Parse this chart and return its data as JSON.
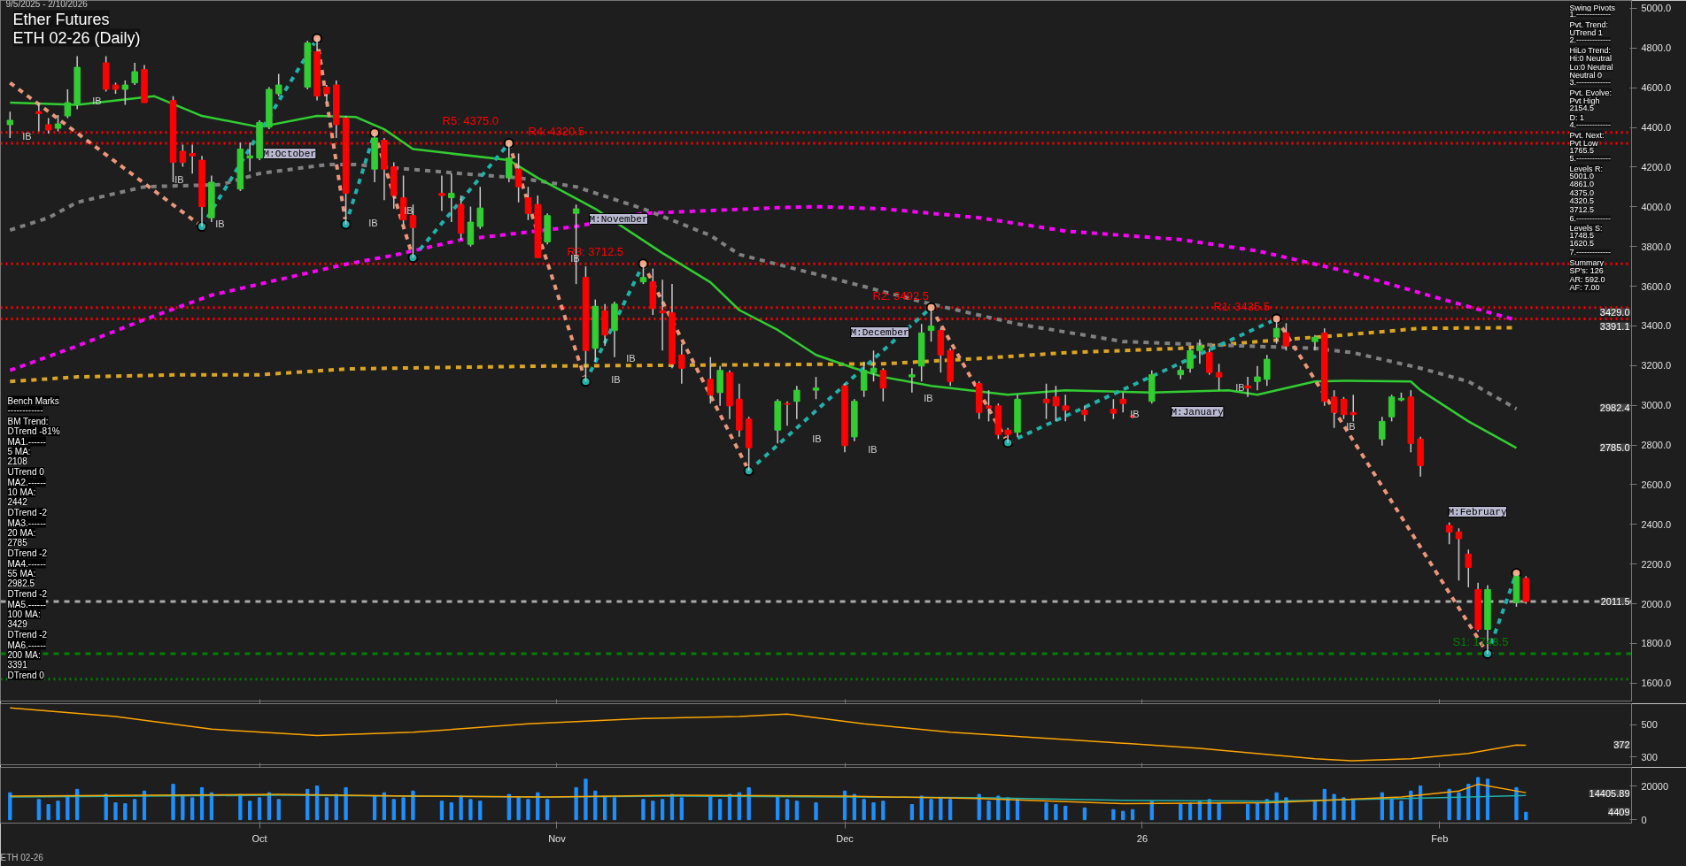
{
  "chart_data": [
    {
      "type": "candlestick",
      "title": "Ether Futures",
      "subtitle": "ETH 02-26 (Daily)",
      "x": [
        "2025-09-05",
        "2025-09-08",
        "2025-09-09",
        "2025-09-10",
        "2025-09-11",
        "2025-09-12",
        "2025-09-15",
        "2025-09-16",
        "2025-09-17",
        "2025-09-18",
        "2025-09-19",
        "2025-09-22",
        "2025-09-23",
        "2025-09-24",
        "2025-09-25",
        "2025-09-26",
        "2025-09-29",
        "2025-09-30",
        "2025-10-01",
        "2025-10-02",
        "2025-10-03",
        "2025-10-06",
        "2025-10-07",
        "2025-10-08",
        "2025-10-09",
        "2025-10-10",
        "2025-10-13",
        "2025-10-14",
        "2025-10-15",
        "2025-10-16",
        "2025-10-17",
        "2025-10-20",
        "2025-10-21",
        "2025-10-22",
        "2025-10-23",
        "2025-10-24",
        "2025-10-27",
        "2025-10-28",
        "2025-10-29",
        "2025-10-30",
        "2025-10-31",
        "2025-11-03",
        "2025-11-04",
        "2025-11-05",
        "2025-11-06",
        "2025-11-07",
        "2025-11-10",
        "2025-11-11",
        "2025-11-12",
        "2025-11-13",
        "2025-11-14",
        "2025-11-17",
        "2025-11-18",
        "2025-11-19",
        "2025-11-20",
        "2025-11-21",
        "2025-11-24",
        "2025-11-25",
        "2025-11-26",
        "2025-11-28",
        "2025-12-01",
        "2025-12-02",
        "2025-12-03",
        "2025-12-04",
        "2025-12-05",
        "2025-12-08",
        "2025-12-09",
        "2025-12-10",
        "2025-12-11",
        "2025-12-12",
        "2025-12-15",
        "2025-12-16",
        "2025-12-17",
        "2025-12-18",
        "2025-12-19",
        "2025-12-22",
        "2025-12-23",
        "2025-12-24",
        "2025-12-26",
        "2025-12-29",
        "2025-12-30",
        "2025-12-31",
        "2026-01-02",
        "2026-01-05",
        "2026-01-06",
        "2026-01-07",
        "2026-01-08",
        "2026-01-09",
        "2026-01-12",
        "2026-01-13",
        "2026-01-14",
        "2026-01-15",
        "2026-01-16",
        "2026-01-19",
        "2026-01-20",
        "2026-01-21",
        "2026-01-22",
        "2026-01-23",
        "2026-01-26",
        "2026-01-27",
        "2026-01-28",
        "2026-01-29",
        "2026-01-30",
        "2026-02-02",
        "2026-02-03",
        "2026-02-04",
        "2026-02-05",
        "2026-02-06",
        "2026-02-09",
        "2026-02-10"
      ],
      "ohlc": [
        [
          4414,
          4480,
          4347,
          4436
        ],
        [
          4480,
          4525,
          4380,
          4470
        ],
        [
          4414,
          4447,
          4369,
          4387
        ],
        [
          4396,
          4463,
          4380,
          4418
        ],
        [
          4458,
          4592,
          4447,
          4525
        ],
        [
          4514,
          4759,
          4492,
          4703
        ],
        [
          4726,
          4759,
          4581,
          4592
        ],
        [
          4614,
          4625,
          4570,
          4592
        ],
        [
          4592,
          4637,
          4514,
          4614
        ],
        [
          4625,
          4726,
          4614,
          4681
        ],
        [
          4692,
          4715,
          4525,
          4525
        ],
        [
          4536,
          4558,
          4124,
          4224
        ],
        [
          4280,
          4313,
          4202,
          4224
        ],
        [
          4269,
          4313,
          4168,
          4257
        ],
        [
          4235,
          4257,
          3901,
          4001
        ],
        [
          3945,
          4157,
          3923,
          4124
        ],
        [
          4090,
          4324,
          4079,
          4291
        ],
        [
          4246,
          4324,
          4179,
          4257
        ],
        [
          4246,
          4436,
          4235,
          4425
        ],
        [
          4402,
          4603,
          4391,
          4592
        ],
        [
          4570,
          4670,
          4558,
          4614
        ],
        [
          4603,
          4837,
          4592,
          4826
        ],
        [
          4781,
          4848,
          4536,
          4558
        ],
        [
          4603,
          4614,
          4525,
          4570
        ],
        [
          4614,
          4637,
          4347,
          4414
        ],
        [
          4447,
          4458,
          3912,
          4068
        ],
        [
          4190,
          4373,
          4124,
          4347
        ],
        [
          4335,
          4347,
          4034,
          4190
        ],
        [
          4202,
          4224,
          3990,
          4057
        ],
        [
          4046,
          4157,
          3912,
          3934
        ],
        [
          3956,
          4012,
          3744,
          3896
        ],
        [
          4068,
          4157,
          3979,
          4057
        ],
        [
          4046,
          4168,
          3923,
          4068
        ],
        [
          4012,
          4057,
          3834,
          3867
        ],
        [
          3811,
          4001,
          3800,
          3923
        ],
        [
          3901,
          4101,
          3889,
          3994
        ],
        [
          4146,
          4320.5,
          4124,
          4246
        ],
        [
          4190,
          4269,
          4023,
          4101
        ],
        [
          4046,
          4101,
          3934,
          3967
        ],
        [
          4012,
          4057,
          3744,
          3744
        ],
        [
          3823,
          3967,
          3811,
          3956
        ],
        [
          3967,
          4012,
          3611,
          3990
        ],
        [
          3644,
          3700,
          3120,
          3276
        ],
        [
          3287,
          3533,
          3220,
          3499
        ],
        [
          3477,
          3510,
          3299,
          3354
        ],
        [
          3377,
          3522,
          3243,
          3510
        ],
        [
          3622,
          3712.5,
          3611,
          3644
        ],
        [
          3622,
          3689,
          3455,
          3488
        ],
        [
          3477,
          3633,
          3276,
          3466
        ],
        [
          3466,
          3611,
          3187,
          3209
        ],
        [
          3254,
          3310,
          3109,
          3187
        ],
        [
          3131,
          3243,
          3009,
          3053
        ],
        [
          3064,
          3198,
          2997,
          3176
        ],
        [
          3165,
          3176,
          2931,
          2997
        ],
        [
          3031,
          3109,
          2841,
          2875
        ],
        [
          2931,
          2942,
          2670,
          2786
        ],
        [
          2875,
          3031,
          2808,
          3020
        ],
        [
          3009,
          3020,
          2897,
          3005
        ],
        [
          3020,
          3098,
          2931,
          3076
        ],
        [
          3076,
          3143,
          3031,
          3087
        ],
        [
          3098,
          3109,
          2763,
          2797
        ],
        [
          2841,
          3031,
          2819,
          3020
        ],
        [
          3076,
          3220,
          3042,
          3176
        ],
        [
          3165,
          3276,
          3120,
          3187
        ],
        [
          3176,
          3187,
          3020,
          3087
        ],
        [
          3143,
          3187,
          3064,
          3154
        ],
        [
          3198,
          3410,
          3120,
          3365
        ],
        [
          3377,
          3492.5,
          3321,
          3399
        ],
        [
          3377,
          3388,
          3165,
          3254
        ],
        [
          3276,
          3287,
          3098,
          3120
        ],
        [
          3109,
          3120,
          2931,
          2964
        ],
        [
          2997,
          3076,
          2919,
          2986
        ],
        [
          2997,
          3009,
          2830,
          2853
        ],
        [
          2875,
          2886,
          2812,
          2853
        ],
        [
          2864,
          3053,
          2841,
          3031
        ],
        [
          3031,
          3109,
          2931,
          3013
        ],
        [
          3042,
          3098,
          2919,
          2997
        ],
        [
          2997,
          3053,
          2919,
          2975
        ],
        [
          2975,
          2997,
          2919,
          2953
        ],
        [
          2980,
          3031,
          2931,
          2960
        ],
        [
          3031,
          3064,
          2964,
          3009
        ],
        [
          2946,
          2953,
          2935,
          2942
        ],
        [
          3020,
          3176,
          3009,
          3154
        ],
        [
          3154,
          3198,
          3131,
          3176
        ],
        [
          3187,
          3287,
          3165,
          3276
        ],
        [
          3276,
          3332,
          3209,
          3299
        ],
        [
          3265,
          3287,
          3154,
          3165
        ],
        [
          3165,
          3209,
          3076,
          3143
        ],
        [
          3098,
          3143,
          3042,
          3087
        ],
        [
          3120,
          3198,
          3076,
          3143
        ],
        [
          3131,
          3254,
          3098,
          3232
        ],
        [
          3343,
          3435.5,
          3310,
          3388
        ],
        [
          3365,
          3414,
          3276,
          3299
        ],
        [
          3321,
          3354,
          3276,
          3343
        ],
        [
          3365,
          3388,
          2997,
          3020
        ],
        [
          3042,
          3076,
          2886,
          2964
        ],
        [
          3031,
          3042,
          2931,
          2953
        ],
        [
          2964,
          3053,
          2919,
          2953
        ],
        [
          2830,
          2942,
          2797,
          2919
        ],
        [
          2942,
          3053,
          2919,
          3042
        ],
        [
          3027,
          3064,
          3020,
          3035
        ],
        [
          3042,
          3076,
          2763,
          2808
        ],
        [
          2830,
          2841,
          2641,
          2696
        ],
        [
          2395,
          2410,
          2300,
          2362
        ],
        [
          2362,
          2380,
          2117,
          2328
        ],
        [
          2250,
          2273,
          2083,
          2183
        ],
        [
          2072,
          2106,
          1860,
          1871
        ],
        [
          1871,
          2094,
          1748.5,
          2072
        ],
        [
          2005,
          2154.5,
          1985,
          2139
        ],
        [
          2128,
          2139,
          2000,
          2011.5
        ]
      ],
      "series": [
        {
          "type": "line",
          "color": "#ff00ff",
          "line_style": "dashed",
          "x": [
            "2025-09-05",
            "2025-09-12",
            "2025-09-19",
            "2025-09-26",
            "2025-10-03",
            "2025-10-10",
            "2025-10-15",
            "2025-10-22",
            "2025-11-03",
            "2025-11-10",
            "2025-11-24",
            "2025-11-28",
            "2025-12-05",
            "2025-12-15",
            "2025-12-24",
            "2026-01-05",
            "2026-01-13",
            "2026-01-22",
            "2026-01-30",
            "2026-02-09"
          ],
          "values": [
            3176,
            3299,
            3432,
            3555,
            3633,
            3711,
            3756,
            3834,
            3901,
            3967,
            3996,
            4001,
            3990,
            3945,
            3878,
            3835,
            3778,
            3678,
            3566,
            3429
          ]
        },
        {
          "type": "line",
          "color": "#daa520",
          "line_style": "dashed",
          "x": [
            "2025-09-05",
            "2025-09-12",
            "2025-09-23",
            "2025-10-01",
            "2025-10-10",
            "2025-10-15",
            "2025-10-31",
            "2025-11-24",
            "2025-12-05",
            "2025-12-15",
            "2025-12-24",
            "2026-01-05",
            "2026-01-13",
            "2026-01-22",
            "2026-01-30",
            "2026-02-09"
          ],
          "values": [
            3120,
            3143,
            3154,
            3154,
            3183,
            3187,
            3198,
            3205,
            3209,
            3236,
            3265,
            3287,
            3321,
            3354,
            3388,
            3391.1
          ]
        },
        {
          "type": "line",
          "color": "#808080",
          "line_style": "dashed",
          "x": [
            "2025-09-05",
            "2025-09-09",
            "2025-09-12",
            "2025-09-19",
            "2025-09-27",
            "2025-10-01",
            "2025-10-08",
            "2025-10-11",
            "2025-10-22",
            "2025-10-28",
            "2025-11-03",
            "2025-11-10",
            "2025-11-17",
            "2025-11-20",
            "2025-12-02",
            "2025-12-10",
            "2025-12-19",
            "2025-12-30",
            "2026-01-05",
            "2026-01-19",
            "2026-01-23",
            "2026-01-30",
            "2026-02-04",
            "2026-02-09"
          ],
          "values": [
            3883,
            3945,
            4023,
            4101,
            4112,
            4168,
            4213,
            4213,
            4168,
            4146,
            4101,
            3990,
            3856,
            3760,
            3611,
            3510,
            3410,
            3321,
            3310,
            3287,
            3265,
            3187,
            3120,
            2982.4
          ]
        },
        {
          "type": "line",
          "color": "#32cd32",
          "line_style": "solid",
          "x": [
            "2025-09-05",
            "2025-09-12",
            "2025-09-20",
            "2025-09-25",
            "2025-10-01",
            "2025-10-07",
            "2025-10-11",
            "2025-10-14",
            "2025-10-17",
            "2025-10-27",
            "2025-10-30",
            "2025-11-05",
            "2025-11-12",
            "2025-11-17",
            "2025-11-20",
            "2025-11-24",
            "2025-11-28",
            "2025-12-02",
            "2025-12-05",
            "2025-12-10",
            "2025-12-18",
            "2025-12-24",
            "2026-01-02",
            "2026-01-10",
            "2026-01-13",
            "2026-01-19",
            "2026-01-22",
            "2026-01-29",
            "2026-01-30",
            "2026-02-04",
            "2026-02-09"
          ],
          "values": [
            4525,
            4514,
            4558,
            4458,
            4402,
            4458,
            4453,
            4391,
            4291,
            4235,
            4146,
            3990,
            3767,
            3620,
            3480,
            3380,
            3254,
            3187,
            3143,
            3098,
            3053,
            3076,
            3064,
            3076,
            3053,
            3120,
            3124,
            3120,
            3076,
            2919,
            2785
          ]
        },
        {
          "type": "line",
          "color": "#e9967a",
          "line_style": "dashed",
          "x": [
            "2025-09-05",
            "2025-09-25"
          ],
          "values": [
            4625,
            3901
          ]
        },
        {
          "type": "line",
          "color": "#20b2aa",
          "line_style": "dashed",
          "x": [
            "2025-09-25",
            "2025-10-07"
          ],
          "values": [
            3901,
            4848
          ]
        },
        {
          "type": "line",
          "color": "#e9967a",
          "line_style": "dashed",
          "x": [
            "2025-10-07",
            "2025-10-10"
          ],
          "values": [
            4848,
            3912
          ]
        },
        {
          "type": "line",
          "color": "#20b2aa",
          "line_style": "dashed",
          "x": [
            "2025-10-10",
            "2025-10-13"
          ],
          "values": [
            3912,
            4373
          ]
        },
        {
          "type": "line",
          "color": "#e9967a",
          "line_style": "dashed",
          "x": [
            "2025-10-13",
            "2025-10-17"
          ],
          "values": [
            4373,
            3744
          ]
        },
        {
          "type": "line",
          "color": "#20b2aa",
          "line_style": "dashed",
          "x": [
            "2025-10-17",
            "2025-10-27"
          ],
          "values": [
            3744,
            4320.5
          ]
        },
        {
          "type": "line",
          "color": "#e9967a",
          "line_style": "dashed",
          "x": [
            "2025-10-27",
            "2025-11-04"
          ],
          "values": [
            4320.5,
            3120
          ]
        },
        {
          "type": "line",
          "color": "#20b2aa",
          "line_style": "dashed",
          "x": [
            "2025-11-04",
            "2025-11-10"
          ],
          "values": [
            3120,
            3712.5
          ]
        },
        {
          "type": "line",
          "color": "#e9967a",
          "line_style": "dashed",
          "x": [
            "2025-11-10",
            "2025-11-21"
          ],
          "values": [
            3712.5,
            2670
          ]
        },
        {
          "type": "line",
          "color": "#20b2aa",
          "line_style": "dashed",
          "x": [
            "2025-11-21",
            "2025-12-10"
          ],
          "values": [
            2670,
            3492.5
          ]
        },
        {
          "type": "line",
          "color": "#e9967a",
          "line_style": "dashed",
          "x": [
            "2025-12-10",
            "2025-12-18"
          ],
          "values": [
            3492.5,
            2812
          ]
        },
        {
          "type": "line",
          "color": "#20b2aa",
          "line_style": "dashed",
          "x": [
            "2025-12-18",
            "2026-01-15"
          ],
          "values": [
            2812,
            3435.5
          ]
        },
        {
          "type": "line",
          "color": "#e9967a",
          "line_style": "dashed",
          "x": [
            "2026-01-15",
            "2026-02-06"
          ],
          "values": [
            3435.5,
            1748.5
          ]
        },
        {
          "type": "line",
          "color": "#20b2aa",
          "line_style": "dashed",
          "x": [
            "2026-02-06",
            "2026-02-09"
          ],
          "values": [
            1748.5,
            2154.5
          ]
        },
        {
          "type": "scatter",
          "marker": "circle",
          "x": [
            "2025-09-25",
            "2025-10-07",
            "2025-10-10",
            "2025-10-13",
            "2025-10-17",
            "2025-10-27",
            "2025-11-04",
            "2025-11-10",
            "2025-11-21",
            "2025-12-10",
            "2025-12-18",
            "2026-01-15",
            "2026-02-06",
            "2026-02-09"
          ],
          "values": [
            3901,
            4848,
            3912,
            4373,
            3744,
            4320.5,
            3120,
            3712.5,
            2670,
            3492.5,
            2812,
            3435.5,
            1748.5,
            2154.5
          ],
          "colors": [
            "#20b2aa",
            "#f4a582",
            "#20b2aa",
            "#f4a582",
            "#20b2aa",
            "#f4a582",
            "#20b2aa",
            "#f4a582",
            "#20b2aa",
            "#f4a582",
            "#20b2aa",
            "#f4a582",
            "#20b2aa",
            "#f4a582"
          ]
        }
      ],
      "ref_lines": [
        {
          "axis": "y",
          "value": 4375.0,
          "label": "R5: 4375.0",
          "color": "#ff0000",
          "line_style": "dotted"
        },
        {
          "axis": "y",
          "value": 4320.5,
          "label": "R4: 4320.5",
          "color": "#ff0000",
          "line_style": "dotted"
        },
        {
          "axis": "y",
          "value": 3712.5,
          "label": "R3: 3712.5",
          "color": "#ff0000",
          "line_style": "dotted"
        },
        {
          "axis": "y",
          "value": 3492.5,
          "label": "R2: 3492.5",
          "color": "#ff0000",
          "line_style": "dotted"
        },
        {
          "axis": "y",
          "value": 3435.5,
          "label": "R1: 3435.5",
          "color": "#ff0000",
          "line_style": "dotted"
        },
        {
          "axis": "y",
          "value": 1748.5,
          "label": "S1: 1748.5",
          "color": "#008000",
          "line_style": "dashed"
        },
        {
          "axis": "y",
          "value": 1620.5,
          "color": "#008000",
          "line_style": "dotted"
        },
        {
          "axis": "y",
          "value": 2011.5,
          "color": "#aaaaaa",
          "line_style": "dashed"
        }
      ],
      "annotations": [
        "9/5/2025 - 2/10/2026",
        "Swing Pivots\n1.-------------\nPvt. Trend:\nUTrend 1\n2.-------------\nHiLo Trend:\nHi:0 Neutral\nLo:0 Neutral\nNeutral 0\n3.-------------\nPvt. Evolve:\nPvt High\n2154.5\nD: 1\n4.-------------\nPvt. Next:\nPvt Low\n1765.5\n5.-------------\nLevels R:\n5001.0\n4861.0\n4375.0\n4320.5\n3712.5\n6.-------------\nLevels S:\n1748.5\n1620.5\n7.-------------\nSummary\nSP's: 126\nAR: 592.0\nAF: 7.00",
        "Bench Marks\n------------\nBM Trend:\nDTrend -81%\nMA1.------\n5 MA:\n2108\nUTrend 0\nMA2.------\n10 MA:\n2442\nDTrend -2\nMA3.------\n20 MA:\n2785\nDTrend -2\nMA4.------\n55 MA:\n2982.5\nDTrend -2\nMA5.------\n100 MA:\n3429\nDTrend -2\nMA6.------\n200 MA:\n3391\nDTrend 0",
        "M:October",
        "M:November",
        "M:December",
        "M:January",
        "M:February",
        "IB",
        "IB",
        "IB",
        "IB",
        "IB",
        "IB",
        "IB",
        "IB",
        "IB",
        "IB",
        "IB",
        "IB",
        "IB",
        "IB",
        "IB",
        "3429.0",
        "3391.1",
        "2982.4",
        "2785.0",
        "2011.5"
      ],
      "xlim": [
        "2025-09-04",
        "2026-02-21"
      ],
      "ylim": [
        1510,
        5040
      ],
      "yticks": [
        {
          "value": 1600,
          "label": "1600.0"
        },
        {
          "value": 1800,
          "label": "1800.0"
        },
        {
          "value": 2000,
          "label": "2000.0"
        },
        {
          "value": 2200,
          "label": "2200.0"
        },
        {
          "value": 2400,
          "label": "2400.0"
        },
        {
          "value": 2600,
          "label": "2600.0"
        },
        {
          "value": 2800,
          "label": "2800.0"
        },
        {
          "value": 3000,
          "label": "3000.0"
        },
        {
          "value": 3200,
          "label": "3200.0"
        },
        {
          "value": 3400,
          "label": "3400.0"
        },
        {
          "value": 3600,
          "label": "3600.0"
        },
        {
          "value": 3800,
          "label": "3800.0"
        },
        {
          "value": 4000,
          "label": "4000.0"
        },
        {
          "value": 4200,
          "label": "4200.0"
        },
        {
          "value": 4400,
          "label": "4400.0"
        },
        {
          "value": 4600,
          "label": "4600.0"
        },
        {
          "value": 4800,
          "label": "4800.0"
        },
        {
          "value": 5000,
          "label": "5000.0"
        }
      ],
      "xticks": [
        {
          "value": "2025-10-01",
          "label": null
        },
        {
          "value": "2025-11-01",
          "label": null
        },
        {
          "value": "2025-12-01",
          "label": null
        },
        {
          "value": "2026-01-01",
          "label": null
        },
        {
          "value": "2026-02-01",
          "label": null
        }
      ],
      "tick_labels": "y",
      "grid": false
    },
    {
      "type": "line",
      "color": "#ffa500",
      "x": [
        "2025-09-05",
        "2025-09-16",
        "2025-09-26",
        "2025-10-07",
        "2025-10-17",
        "2025-10-29",
        "2025-11-10",
        "2025-11-20",
        "2025-11-25",
        "2025-12-03",
        "2025-12-12",
        "2025-12-24",
        "2026-01-07",
        "2026-01-19",
        "2026-01-23",
        "2026-01-29",
        "2026-02-04",
        "2026-02-09",
        "2026-02-10"
      ],
      "values": [
        604,
        551,
        472,
        433,
        453,
        505,
        538,
        551,
        565,
        505,
        453,
        408,
        354,
        289,
        276,
        289,
        322,
        374,
        372
      ],
      "annotations": [
        "372"
      ],
      "xlim": [
        "2025-09-04",
        "2026-02-21"
      ],
      "ylim": [
        252,
        630
      ],
      "yticks": [
        300,
        500
      ],
      "xticks": [
        {
          "value": "2025-10-01",
          "label": null
        },
        {
          "value": "2025-11-01",
          "label": null
        },
        {
          "value": "2025-12-01",
          "label": null
        },
        {
          "value": "2026-01-01",
          "label": null
        },
        {
          "value": "2026-02-01",
          "label": null
        }
      ],
      "tick_labels": "y",
      "grid": false
    },
    {
      "type": "bar",
      "color": "#1e90ff",
      "x": [
        "2025-09-05",
        "2025-09-08",
        "2025-09-09",
        "2025-09-10",
        "2025-09-11",
        "2025-09-12",
        "2025-09-15",
        "2025-09-16",
        "2025-09-17",
        "2025-09-18",
        "2025-09-19",
        "2025-09-22",
        "2025-09-23",
        "2025-09-24",
        "2025-09-25",
        "2025-09-26",
        "2025-09-29",
        "2025-09-30",
        "2025-10-01",
        "2025-10-02",
        "2025-10-03",
        "2025-10-06",
        "2025-10-07",
        "2025-10-08",
        "2025-10-09",
        "2025-10-10",
        "2025-10-13",
        "2025-10-14",
        "2025-10-15",
        "2025-10-16",
        "2025-10-17",
        "2025-10-20",
        "2025-10-21",
        "2025-10-22",
        "2025-10-23",
        "2025-10-24",
        "2025-10-27",
        "2025-10-28",
        "2025-10-29",
        "2025-10-30",
        "2025-10-31",
        "2025-11-03",
        "2025-11-04",
        "2025-11-05",
        "2025-11-06",
        "2025-11-07",
        "2025-11-10",
        "2025-11-11",
        "2025-11-12",
        "2025-11-13",
        "2025-11-14",
        "2025-11-17",
        "2025-11-18",
        "2025-11-19",
        "2025-11-20",
        "2025-11-21",
        "2025-11-24",
        "2025-11-25",
        "2025-11-26",
        "2025-11-28",
        "2025-12-01",
        "2025-12-02",
        "2025-12-03",
        "2025-12-04",
        "2025-12-05",
        "2025-12-08",
        "2025-12-09",
        "2025-12-10",
        "2025-12-11",
        "2025-12-12",
        "2025-12-15",
        "2025-12-16",
        "2025-12-17",
        "2025-12-18",
        "2025-12-19",
        "2025-12-22",
        "2025-12-23",
        "2025-12-24",
        "2025-12-26",
        "2025-12-29",
        "2025-12-30",
        "2025-12-31",
        "2026-01-02",
        "2026-01-05",
        "2026-01-06",
        "2026-01-07",
        "2026-01-08",
        "2026-01-09",
        "2026-01-12",
        "2026-01-13",
        "2026-01-14",
        "2026-01-15",
        "2026-01-16",
        "2026-01-19",
        "2026-01-20",
        "2026-01-21",
        "2026-01-22",
        "2026-01-23",
        "2026-01-26",
        "2026-01-27",
        "2026-01-28",
        "2026-01-29",
        "2026-01-30",
        "2026-02-02",
        "2026-02-03",
        "2026-02-04",
        "2026-02-05",
        "2026-02-06",
        "2026-02-09",
        "2026-02-10"
      ],
      "values": [
        16000,
        12000,
        9000,
        11000,
        14000,
        18000,
        15000,
        10000,
        9500,
        12000,
        17000,
        21000,
        14000,
        13000,
        19000,
        16000,
        15000,
        11000,
        13000,
        16000,
        12000,
        18000,
        20000,
        13000,
        15000,
        19000,
        14000,
        16000,
        12000,
        13000,
        17000,
        11000,
        10000,
        14000,
        12000,
        11000,
        15000,
        13000,
        12000,
        16000,
        12000,
        19000,
        24000,
        17000,
        14000,
        13000,
        12000,
        11000,
        12000,
        15000,
        13000,
        14000,
        12000,
        15000,
        16000,
        19000,
        14000,
        12000,
        11000,
        10000,
        17000,
        15000,
        12000,
        10000,
        11000,
        9000,
        14000,
        12000,
        13000,
        12000,
        15000,
        11000,
        14000,
        13000,
        12000,
        10000,
        9000,
        8000,
        7000,
        6000,
        5000,
        6000,
        11000,
        9000,
        10000,
        11000,
        12000,
        10000,
        9000,
        10000,
        12000,
        16000,
        13000,
        11000,
        18000,
        15000,
        13000,
        12000,
        16000,
        12000,
        11000,
        17000,
        20000,
        18000,
        16000,
        21000,
        25000,
        24000,
        19000,
        4409
      ],
      "series": [
        {
          "type": "line",
          "color": "#20b2aa",
          "x": [
            "2025-09-05",
            "2025-09-19",
            "2025-10-03",
            "2025-10-17",
            "2025-10-31",
            "2025-11-14",
            "2025-12-01",
            "2025-12-15",
            "2025-12-30",
            "2026-01-14",
            "2026-01-28",
            "2026-02-04",
            "2026-02-10"
          ],
          "values": [
            13500,
            14000,
            14500,
            14000,
            13500,
            14000,
            13500,
            13000,
            11500,
            11000,
            12500,
            13500,
            14405.89
          ]
        },
        {
          "type": "line",
          "color": "#ffa500",
          "x": [
            "2025-09-05",
            "2025-09-19",
            "2025-10-03",
            "2025-10-17",
            "2025-10-31",
            "2025-11-14",
            "2025-12-01",
            "2025-12-15",
            "2025-12-30",
            "2026-01-14",
            "2026-01-28",
            "2026-02-03",
            "2026-02-05",
            "2026-02-10"
          ],
          "values": [
            14000,
            14500,
            15000,
            14000,
            13500,
            14500,
            14000,
            12500,
            9500,
            10000,
            13500,
            17000,
            21000,
            16000
          ]
        }
      ],
      "annotations": [
        "ETH 02-26",
        "14405.89",
        "4409"
      ],
      "xlim": [
        "2025-09-04",
        "2026-02-21"
      ],
      "ylim": [
        -2000,
        31000
      ],
      "yticks": [
        0,
        20000
      ],
      "xticks": [
        {
          "value": "2025-10-01",
          "label": "Oct"
        },
        {
          "value": "2025-11-01",
          "label": "Nov"
        },
        {
          "value": "2025-12-01",
          "label": "Dec"
        },
        {
          "value": "2026-01-01",
          "label": "26"
        },
        {
          "value": "2026-02-01",
          "label": "Feb"
        }
      ],
      "grid": false
    }
  ]
}
